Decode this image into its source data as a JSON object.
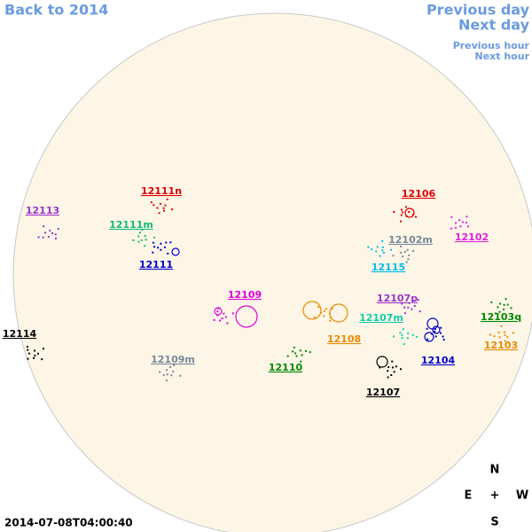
{
  "nav": {
    "back": "Back to 2014",
    "previous_day": "Previous day",
    "next_day": "Next day",
    "previous_hour": "Previous hour",
    "next_hour": "Next hour"
  },
  "regions": [
    {
      "label": "12113",
      "color": "#9933cc"
    },
    {
      "label": "12111n",
      "color": "#dd0000"
    },
    {
      "label": "12111m",
      "color": "#11bb77"
    },
    {
      "label": "12111",
      "color": "#0000cc"
    },
    {
      "label": "12106",
      "color": "#dd0000"
    },
    {
      "label": "12102m",
      "color": "#778899"
    },
    {
      "label": "12102",
      "color": "#dd22dd"
    },
    {
      "label": "12115",
      "color": "#00bbee"
    },
    {
      "label": "12109",
      "color": "#dd00dd"
    },
    {
      "label": "12107p",
      "color": "#9933cc"
    },
    {
      "label": "12107m",
      "color": "#11ccaa"
    },
    {
      "label": "12108",
      "color": "#ee8800"
    },
    {
      "label": "12103q",
      "color": "#008800"
    },
    {
      "label": "12103",
      "color": "#ee8800"
    },
    {
      "label": "12114",
      "color": "#000000"
    },
    {
      "label": "12109m",
      "color": "#778899"
    },
    {
      "label": "12110",
      "color": "#008800"
    },
    {
      "label": "12104",
      "color": "#0000cc"
    },
    {
      "label": "12107",
      "color": "#000000"
    }
  ],
  "compass": {
    "north": "N",
    "east": "E",
    "center": "+",
    "west": "W",
    "south": "S"
  },
  "timestamp": "2014-07-08T04:00:40"
}
